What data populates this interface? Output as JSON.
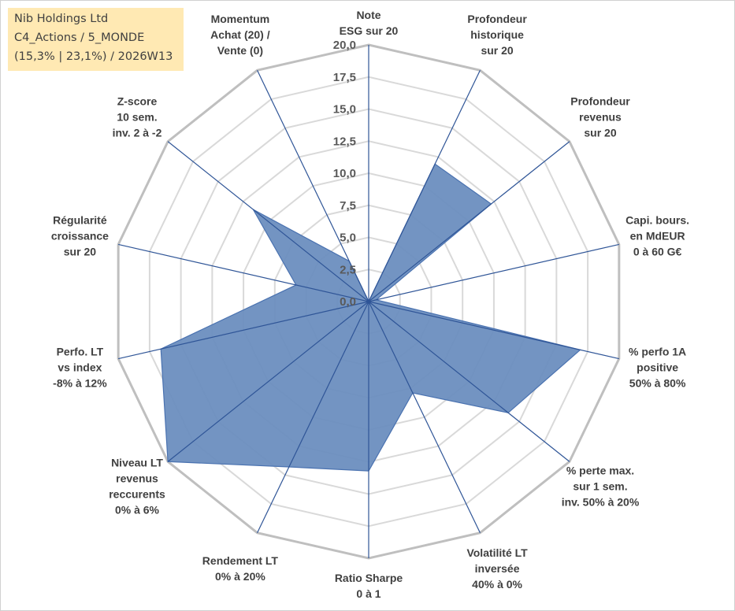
{
  "info": {
    "line1": "Nib Holdings Ltd",
    "line2": "C4_Actions / 5_MONDE",
    "line3": "(15,3% | 23,1%) / 2026W13"
  },
  "chart_data": {
    "type": "radar",
    "rmin": 0,
    "rmax": 20,
    "ticks": [
      "0,0",
      "2,5",
      "5,0",
      "7,5",
      "10,0",
      "12,5",
      "15,0",
      "17,5",
      "20,0"
    ],
    "axes": [
      {
        "lines": [
          "Note",
          "ESG sur 20"
        ]
      },
      {
        "lines": [
          "Profondeur",
          "historique",
          "sur 20"
        ]
      },
      {
        "lines": [
          "Profondeur",
          "revenus",
          "sur 20"
        ]
      },
      {
        "lines": [
          "Capi. bours.",
          "en MdEUR",
          "0 à 60 G€"
        ]
      },
      {
        "lines": [
          "% perfo 1A",
          "positive",
          "50% à 80%"
        ]
      },
      {
        "lines": [
          "% perte max.",
          "sur 1 sem.",
          "inv. 50% à 20%"
        ]
      },
      {
        "lines": [
          "Volatilité LT",
          "inversée",
          "40% à 0%"
        ]
      },
      {
        "lines": [
          "Ratio Sharpe",
          "0 à 1"
        ]
      },
      {
        "lines": [
          "Rendement LT",
          "0% à 20%"
        ]
      },
      {
        "lines": [
          "Niveau LT",
          "revenus",
          "reccurents",
          "0% à 6%"
        ]
      },
      {
        "lines": [
          "Perfo. LT",
          "vs index",
          "-8% à 12%"
        ]
      },
      {
        "lines": [
          "Régularité",
          "croissance",
          "sur 20"
        ]
      },
      {
        "lines": [
          "Z-score",
          "10 sem.",
          "inv. 2 à -2"
        ]
      },
      {
        "lines": [
          "Momentum",
          "Achat (20) /",
          "Vente (0)"
        ]
      }
    ],
    "values": [
      0,
      11.9,
      12.2,
      0.6,
      16.9,
      13.9,
      7.9,
      13.2,
      14.3,
      20,
      16.6,
      5.8,
      11.5,
      3.5
    ],
    "series_color": "#6c8ebf",
    "grid": true
  }
}
